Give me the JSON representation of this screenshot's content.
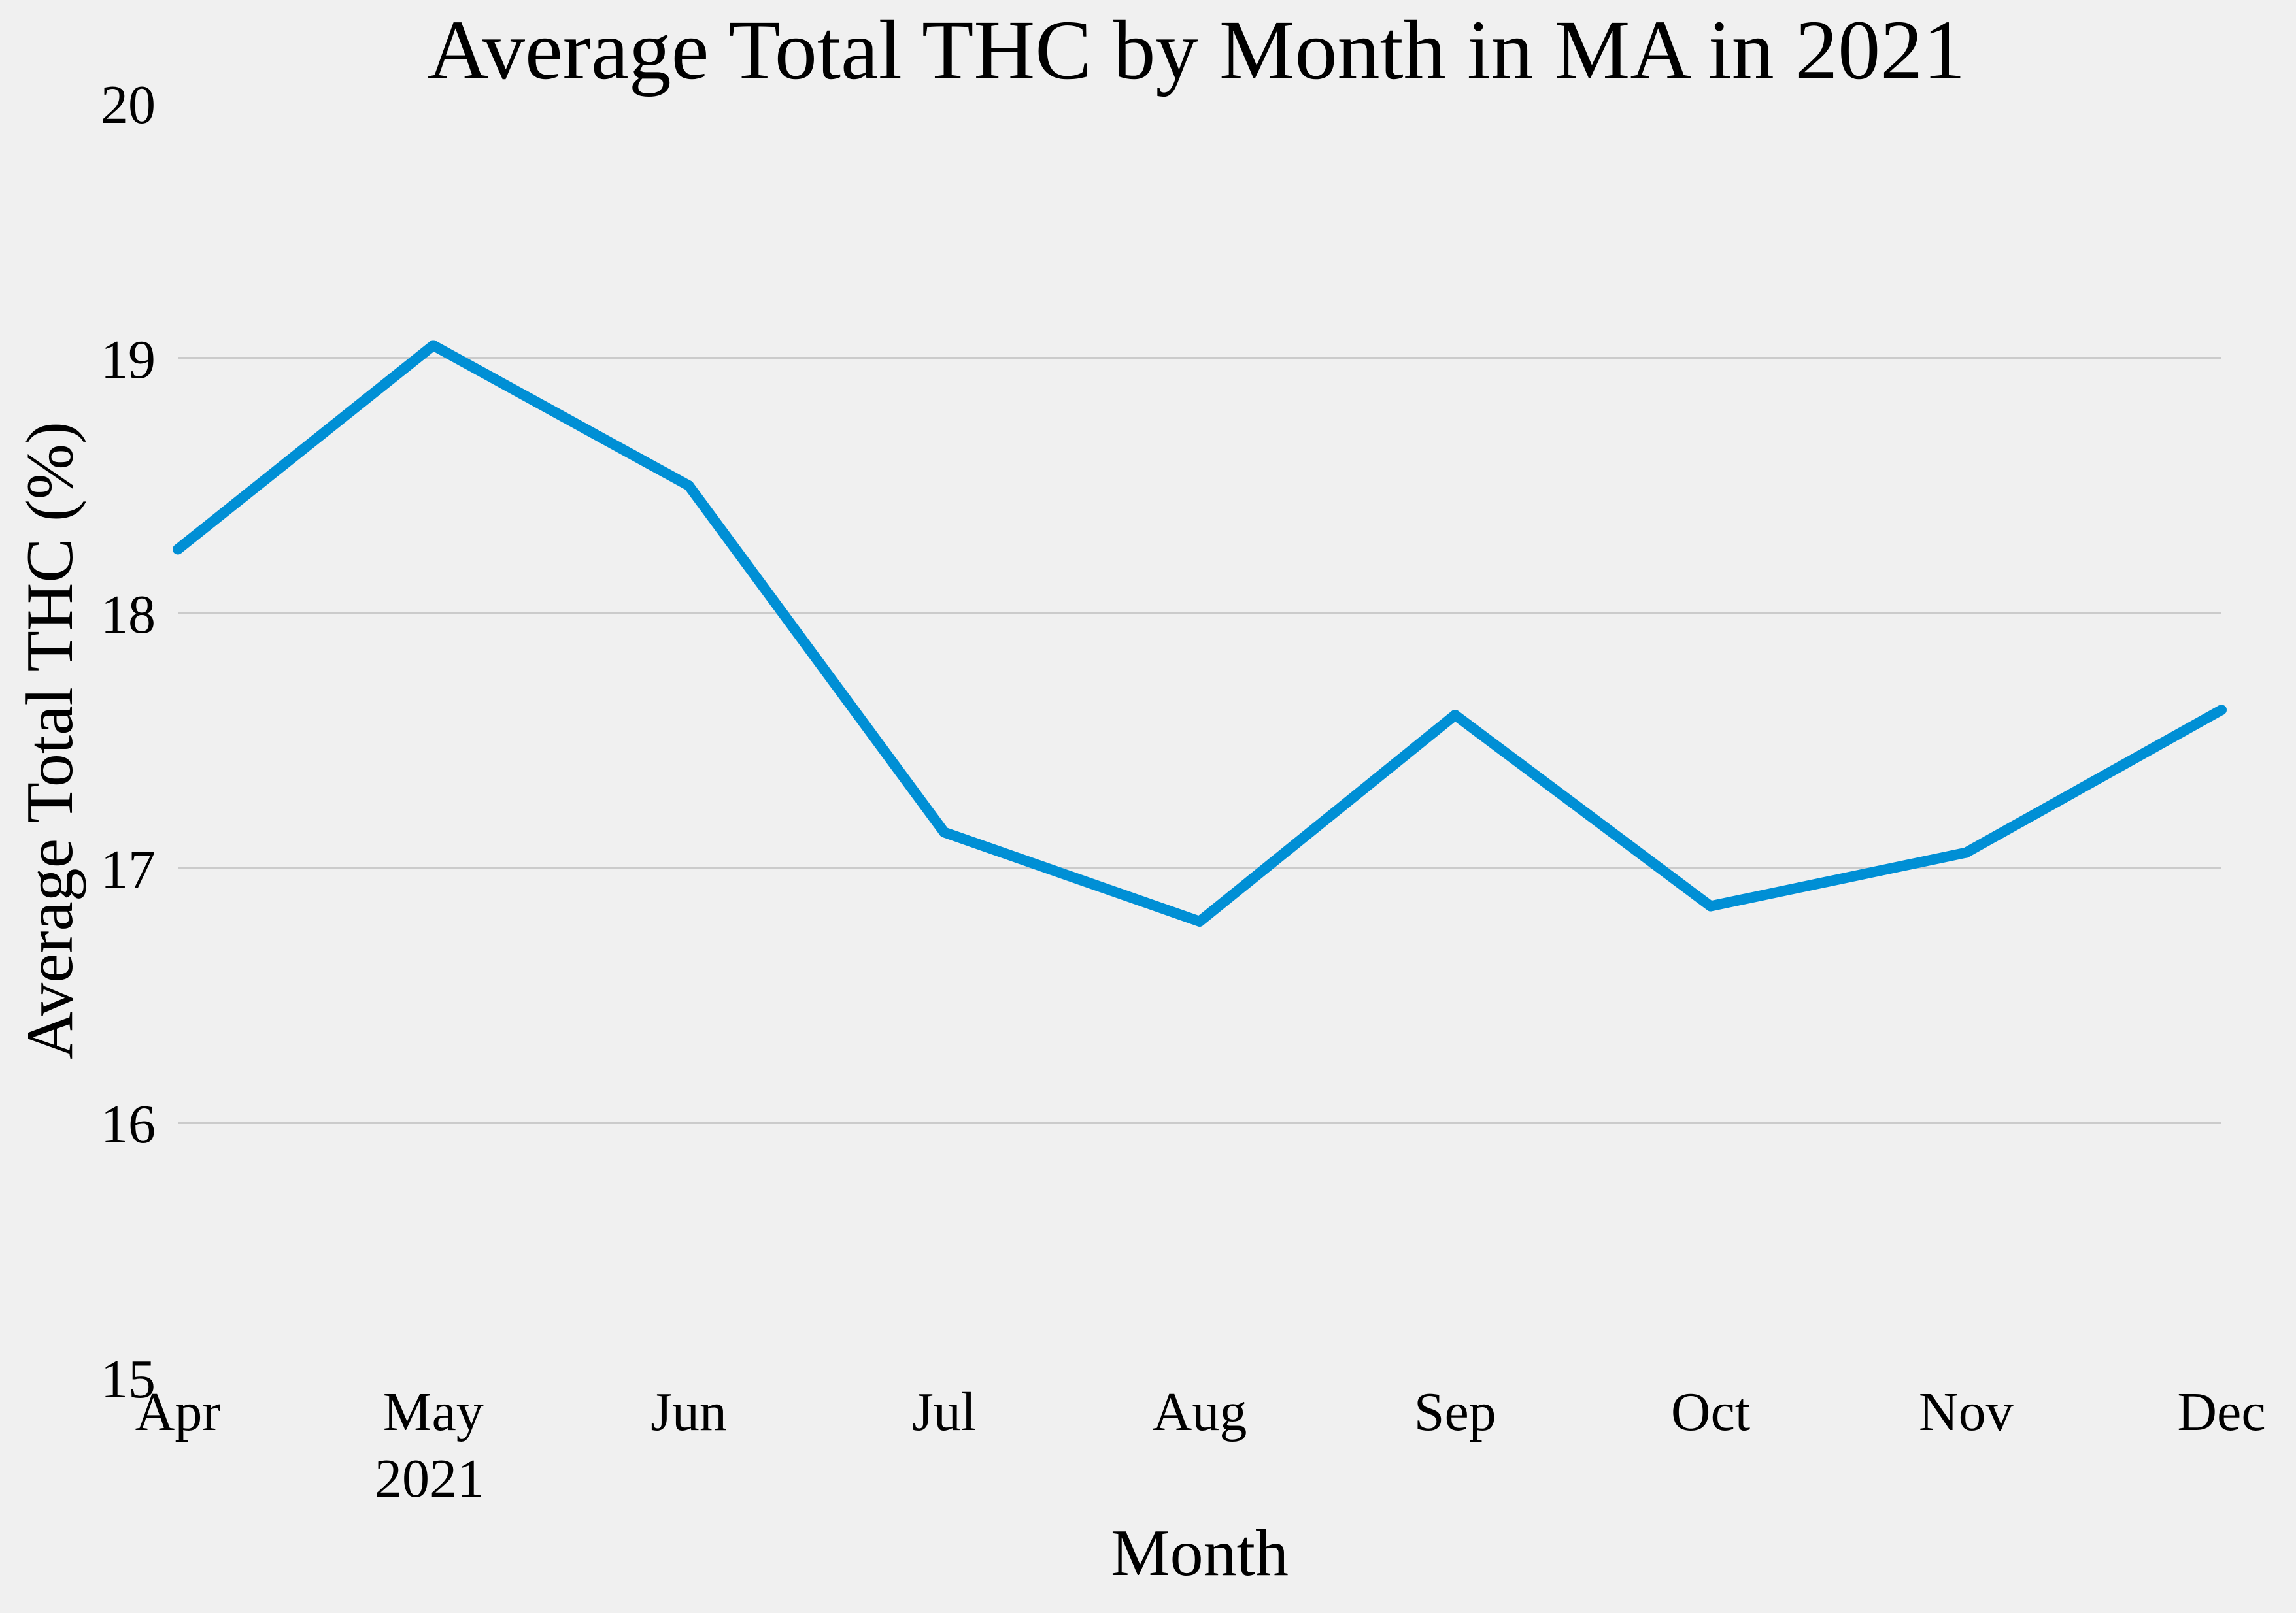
{
  "chart_data": {
    "type": "line",
    "title": "Average Total THC by Month in MA in 2021",
    "xlabel": "Month",
    "ylabel": "Average Total THC (%)",
    "year_label": "2021",
    "categories": [
      "Apr",
      "May",
      "Jun",
      "Jul",
      "Aug",
      "Sep",
      "Oct",
      "Nov",
      "Dec"
    ],
    "series": [
      {
        "values": [
          18.25,
          19.05,
          18.5,
          17.14,
          16.79,
          17.6,
          16.85,
          17.06,
          17.62
        ]
      }
    ],
    "ylim": [
      15,
      20
    ],
    "yticks": [
      "15",
      "16",
      "17",
      "18",
      "19",
      "20"
    ],
    "grid": "horizontal",
    "legend": "none",
    "colors": {
      "background": "#f0f0f0",
      "line": "#008fd5",
      "grid": "#cbcbcb",
      "text": "#000000"
    }
  }
}
